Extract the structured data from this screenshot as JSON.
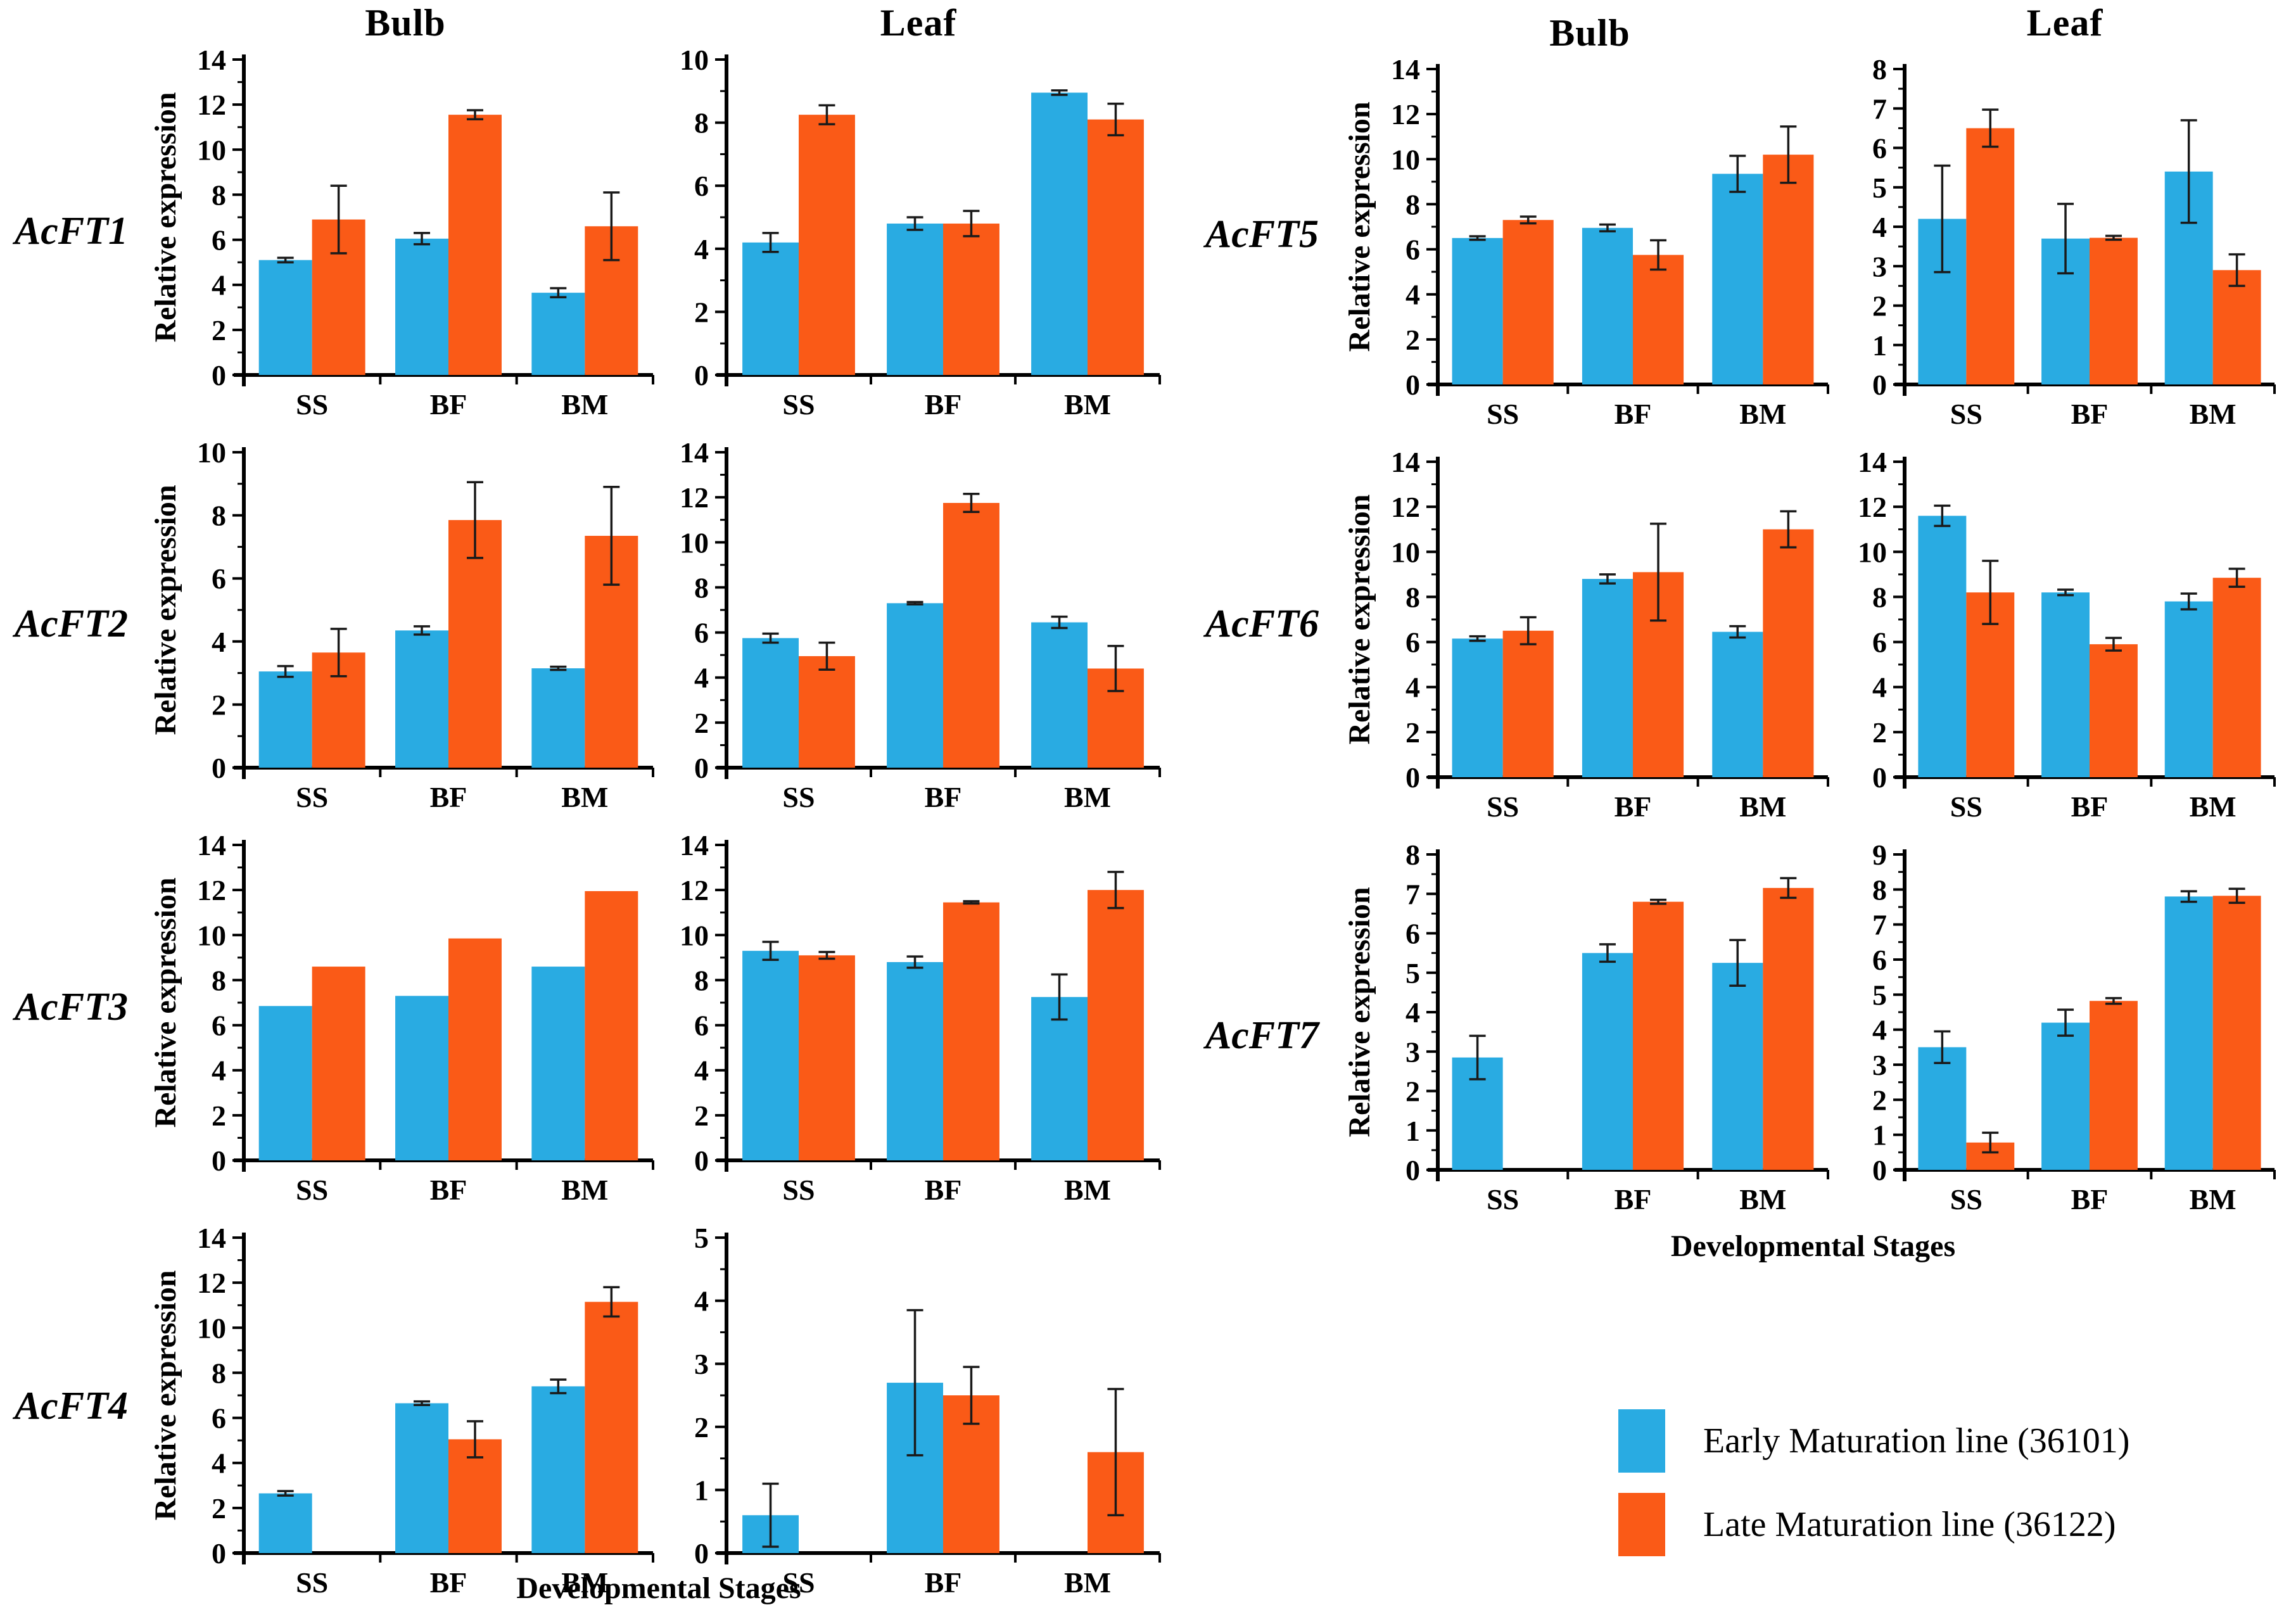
{
  "titles": {
    "bulb": "Bulb",
    "leaf": "Leaf"
  },
  "genes": [
    "AcFT1",
    "AcFT2",
    "AcFT3",
    "AcFT4",
    "AcFT5",
    "AcFT6",
    "AcFT7"
  ],
  "axis": {
    "ylabel": "Relative expression",
    "xlabel": "Developmental Stages"
  },
  "categories": [
    "SS",
    "BF",
    "BM"
  ],
  "colors": {
    "early": "#29ABE2",
    "late": "#FA5A17"
  },
  "legend": {
    "items": [
      {
        "key": "early",
        "label": "Early Maturation line (36101)",
        "color": "#29ABE2"
      },
      {
        "key": "late",
        "label": "Late Maturation line (36122)",
        "color": "#FA5A17"
      }
    ]
  },
  "chart_data": [
    {
      "id": "AcFT1-bulb",
      "type": "bar",
      "gene": "AcFT1",
      "tissue": "Bulb",
      "ylabel": "Relative expression",
      "ylim": [
        0,
        14
      ],
      "ytick": 2,
      "categories": [
        "SS",
        "BF",
        "BM"
      ],
      "series": [
        {
          "name": "Early Maturation line (36101)",
          "color_key": "early",
          "values": [
            5.1,
            6.05,
            3.65
          ],
          "errors": [
            0.1,
            0.25,
            0.2
          ]
        },
        {
          "name": "Late Maturation line (36122)",
          "color_key": "late",
          "values": [
            6.9,
            11.55,
            6.6
          ],
          "errors": [
            1.5,
            0.2,
            1.5
          ]
        }
      ]
    },
    {
      "id": "AcFT1-leaf",
      "type": "bar",
      "gene": "AcFT1",
      "tissue": "Leaf",
      "ylabel": null,
      "ylim": [
        0,
        10
      ],
      "ytick": 2,
      "categories": [
        "SS",
        "BF",
        "BM"
      ],
      "series": [
        {
          "name": "Early Maturation line (36101)",
          "color_key": "early",
          "values": [
            4.2,
            4.8,
            8.95
          ],
          "errors": [
            0.3,
            0.2,
            0.07
          ]
        },
        {
          "name": "Late Maturation line (36122)",
          "color_key": "late",
          "values": [
            8.25,
            4.8,
            8.1
          ],
          "errors": [
            0.3,
            0.4,
            0.5
          ]
        }
      ]
    },
    {
      "id": "AcFT2-bulb",
      "type": "bar",
      "gene": "AcFT2",
      "tissue": "Bulb",
      "ylabel": "Relative expression",
      "ylim": [
        0,
        10
      ],
      "ytick": 2,
      "categories": [
        "SS",
        "BF",
        "BM"
      ],
      "series": [
        {
          "name": "Early Maturation line (36101)",
          "color_key": "early",
          "values": [
            3.05,
            4.35,
            3.15
          ],
          "errors": [
            0.17,
            0.13,
            0.05
          ]
        },
        {
          "name": "Late Maturation line (36122)",
          "color_key": "late",
          "values": [
            3.65,
            7.85,
            7.35
          ],
          "errors": [
            0.75,
            1.2,
            1.55
          ]
        }
      ]
    },
    {
      "id": "AcFT2-leaf",
      "type": "bar",
      "gene": "AcFT2",
      "tissue": "Leaf",
      "ylabel": null,
      "ylim": [
        0,
        14
      ],
      "ytick": 2,
      "categories": [
        "SS",
        "BF",
        "BM"
      ],
      "series": [
        {
          "name": "Early Maturation line (36101)",
          "color_key": "early",
          "values": [
            5.75,
            7.3,
            6.45
          ],
          "errors": [
            0.2,
            0.05,
            0.25
          ]
        },
        {
          "name": "Late Maturation line (36122)",
          "color_key": "late",
          "values": [
            4.95,
            11.75,
            4.4
          ],
          "errors": [
            0.6,
            0.4,
            1.0
          ]
        }
      ]
    },
    {
      "id": "AcFT3-bulb",
      "type": "bar",
      "gene": "AcFT3",
      "tissue": "Bulb",
      "ylabel": "Relative expression",
      "ylim": [
        0,
        14
      ],
      "ytick": 2,
      "categories": [
        "SS",
        "BF",
        "BM"
      ],
      "series": [
        {
          "name": "Early Maturation line (36101)",
          "color_key": "early",
          "values": [
            6.85,
            7.3,
            8.6
          ],
          "errors": [
            0,
            0,
            0
          ]
        },
        {
          "name": "Late Maturation line (36122)",
          "color_key": "late",
          "values": [
            8.6,
            9.85,
            11.95
          ],
          "errors": [
            0,
            0,
            0
          ]
        }
      ]
    },
    {
      "id": "AcFT3-leaf",
      "type": "bar",
      "gene": "AcFT3",
      "tissue": "Leaf",
      "ylabel": null,
      "ylim": [
        0,
        14
      ],
      "ytick": 2,
      "categories": [
        "SS",
        "BF",
        "BM"
      ],
      "series": [
        {
          "name": "Early Maturation line (36101)",
          "color_key": "early",
          "values": [
            9.3,
            8.8,
            7.25
          ],
          "errors": [
            0.4,
            0.25,
            1.0
          ]
        },
        {
          "name": "Late Maturation line (36122)",
          "color_key": "late",
          "values": [
            9.1,
            11.45,
            12.0
          ],
          "errors": [
            0.15,
            0.05,
            0.8
          ]
        }
      ]
    },
    {
      "id": "AcFT4-bulb",
      "type": "bar",
      "gene": "AcFT4",
      "tissue": "Bulb",
      "ylabel": "Relative expression",
      "ylim": [
        0,
        14
      ],
      "ytick": 2,
      "categories": [
        "SS",
        "BF",
        "BM"
      ],
      "series": [
        {
          "name": "Early Maturation line (36101)",
          "color_key": "early",
          "values": [
            2.65,
            6.65,
            7.4
          ],
          "errors": [
            0.1,
            0.08,
            0.3
          ]
        },
        {
          "name": "Late Maturation line (36122)",
          "color_key": "late",
          "values": [
            0,
            5.05,
            11.15
          ],
          "errors": [
            0,
            0.8,
            0.65
          ]
        }
      ]
    },
    {
      "id": "AcFT4-leaf",
      "type": "bar",
      "gene": "AcFT4",
      "tissue": "Leaf",
      "ylabel": null,
      "ylim": [
        0,
        5
      ],
      "ytick": 1,
      "categories": [
        "SS",
        "BF",
        "BM"
      ],
      "series": [
        {
          "name": "Early Maturation line (36101)",
          "color_key": "early",
          "values": [
            0.6,
            2.7,
            0
          ],
          "errors": [
            0.5,
            1.15,
            0
          ]
        },
        {
          "name": "Late Maturation line (36122)",
          "color_key": "late",
          "values": [
            0,
            2.5,
            1.6
          ],
          "errors": [
            0,
            0.45,
            1.0
          ]
        }
      ]
    },
    {
      "id": "AcFT5-bulb",
      "type": "bar",
      "gene": "AcFT5",
      "tissue": "Bulb",
      "ylabel": "Relative expression",
      "ylim": [
        0,
        14
      ],
      "ytick": 2,
      "categories": [
        "SS",
        "BF",
        "BM"
      ],
      "series": [
        {
          "name": "Early Maturation line (36101)",
          "color_key": "early",
          "values": [
            6.5,
            6.95,
            9.35
          ],
          "errors": [
            0.08,
            0.15,
            0.8
          ]
        },
        {
          "name": "Late Maturation line (36122)",
          "color_key": "late",
          "values": [
            7.3,
            5.75,
            10.2
          ],
          "errors": [
            0.15,
            0.65,
            1.25
          ]
        }
      ]
    },
    {
      "id": "AcFT5-leaf",
      "type": "bar",
      "gene": "AcFT5",
      "tissue": "Leaf",
      "ylabel": null,
      "ylim": [
        0,
        8
      ],
      "ytick": 1,
      "categories": [
        "SS",
        "BF",
        "BM"
      ],
      "series": [
        {
          "name": "Early Maturation line (36101)",
          "color_key": "early",
          "values": [
            4.2,
            3.7,
            5.4
          ],
          "errors": [
            1.35,
            0.88,
            1.3
          ]
        },
        {
          "name": "Late Maturation line (36122)",
          "color_key": "late",
          "values": [
            6.5,
            3.72,
            2.9
          ],
          "errors": [
            0.47,
            0.05,
            0.4
          ]
        }
      ]
    },
    {
      "id": "AcFT6-bulb",
      "type": "bar",
      "gene": "AcFT6",
      "tissue": "Bulb",
      "ylabel": "Relative expression",
      "ylim": [
        0,
        14
      ],
      "ytick": 2,
      "categories": [
        "SS",
        "BF",
        "BM"
      ],
      "series": [
        {
          "name": "Early Maturation line (36101)",
          "color_key": "early",
          "values": [
            6.15,
            8.8,
            6.45
          ],
          "errors": [
            0.1,
            0.2,
            0.25
          ]
        },
        {
          "name": "Late Maturation line (36122)",
          "color_key": "late",
          "values": [
            6.5,
            9.1,
            11.0
          ],
          "errors": [
            0.6,
            2.15,
            0.8
          ]
        }
      ]
    },
    {
      "id": "AcFT6-leaf",
      "type": "bar",
      "gene": "AcFT6",
      "tissue": "Leaf",
      "ylabel": null,
      "ylim": [
        0,
        14
      ],
      "ytick": 2,
      "categories": [
        "SS",
        "BF",
        "BM"
      ],
      "series": [
        {
          "name": "Early Maturation line (36101)",
          "color_key": "early",
          "values": [
            11.6,
            8.2,
            7.8
          ],
          "errors": [
            0.45,
            0.12,
            0.35
          ]
        },
        {
          "name": "Late Maturation line (36122)",
          "color_key": "late",
          "values": [
            8.2,
            5.9,
            8.85
          ],
          "errors": [
            1.4,
            0.28,
            0.4
          ]
        }
      ]
    },
    {
      "id": "AcFT7-bulb",
      "type": "bar",
      "gene": "AcFT7",
      "tissue": "Bulb",
      "ylabel": "Relative expression",
      "ylim": [
        0,
        8
      ],
      "ytick": 1,
      "categories": [
        "SS",
        "BF",
        "BM"
      ],
      "series": [
        {
          "name": "Early Maturation line (36101)",
          "color_key": "early",
          "values": [
            2.85,
            5.5,
            5.25
          ],
          "errors": [
            0.55,
            0.22,
            0.58
          ]
        },
        {
          "name": "Late Maturation line (36122)",
          "color_key": "late",
          "values": [
            0,
            6.8,
            7.15
          ],
          "errors": [
            0,
            0.05,
            0.25
          ]
        }
      ]
    },
    {
      "id": "AcFT7-leaf",
      "type": "bar",
      "gene": "AcFT7",
      "tissue": "Leaf",
      "ylabel": null,
      "ylim": [
        0,
        9
      ],
      "ytick": 1,
      "categories": [
        "SS",
        "BF",
        "BM"
      ],
      "series": [
        {
          "name": "Early Maturation line (36101)",
          "color_key": "early",
          "values": [
            3.5,
            4.2,
            7.8
          ],
          "errors": [
            0.45,
            0.37,
            0.15
          ]
        },
        {
          "name": "Late Maturation line (36122)",
          "color_key": "late",
          "values": [
            0.78,
            4.82,
            7.82
          ],
          "errors": [
            0.28,
            0.08,
            0.2
          ]
        }
      ]
    }
  ]
}
